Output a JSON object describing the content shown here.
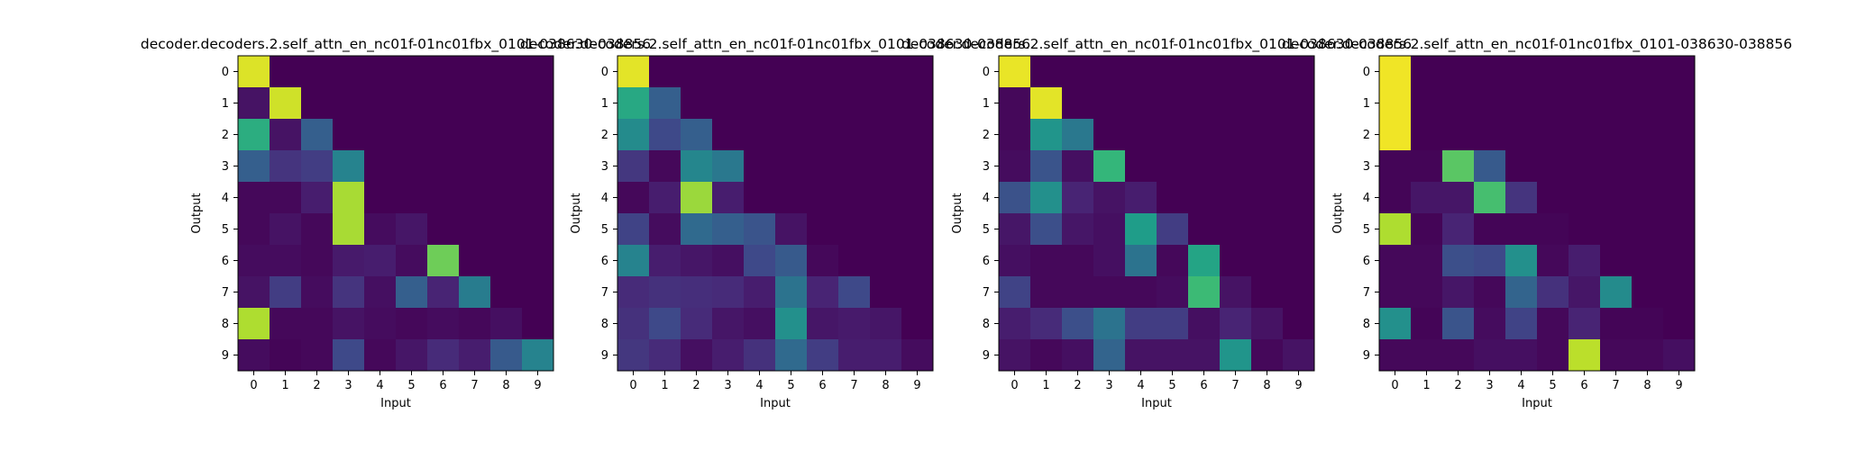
{
  "chart_data": [
    {
      "type": "heatmap",
      "title": "decoder.decoders.2.self_attn_en_nc01f-01nc01fbx_0101-038630-038856",
      "xlabel": "Input",
      "ylabel": "Output",
      "x_ticks": [
        "0",
        "1",
        "2",
        "3",
        "4",
        "5",
        "6",
        "7",
        "8",
        "9"
      ],
      "y_ticks": [
        "0",
        "1",
        "2",
        "3",
        "4",
        "5",
        "6",
        "7",
        "8",
        "9"
      ],
      "colormap": "viridis",
      "value_range": [
        0,
        1
      ],
      "values": [
        [
          0.95,
          0,
          0,
          0,
          0,
          0,
          0,
          0,
          0,
          0
        ],
        [
          0.05,
          0.93,
          0,
          0,
          0,
          0,
          0,
          0,
          0,
          0
        ],
        [
          0.62,
          0.05,
          0.3,
          0,
          0,
          0,
          0,
          0,
          0,
          0
        ],
        [
          0.3,
          0.15,
          0.18,
          0.45,
          0,
          0,
          0,
          0,
          0,
          0
        ],
        [
          0.02,
          0.02,
          0.08,
          0.87,
          0,
          0,
          0,
          0,
          0,
          0
        ],
        [
          0.02,
          0.05,
          0.02,
          0.87,
          0.03,
          0.06,
          0,
          0,
          0,
          0
        ],
        [
          0.03,
          0.03,
          0.02,
          0.07,
          0.08,
          0.03,
          0.78,
          0,
          0,
          0
        ],
        [
          0.05,
          0.18,
          0.03,
          0.15,
          0.04,
          0.3,
          0.1,
          0.42,
          0,
          0
        ],
        [
          0.88,
          0.02,
          0.02,
          0.05,
          0.03,
          0.02,
          0.03,
          0.02,
          0.04,
          0
        ],
        [
          0.03,
          0.01,
          0.02,
          0.22,
          0.02,
          0.06,
          0.12,
          0.08,
          0.28,
          0.45
        ]
      ]
    },
    {
      "type": "heatmap",
      "title": "decoder.decoders.2.self_attn_en_nc01f-01nc01fbx_0101-038630-038856",
      "xlabel": "Input",
      "ylabel": "Output",
      "x_ticks": [
        "0",
        "1",
        "2",
        "3",
        "4",
        "5",
        "6",
        "7",
        "8",
        "9"
      ],
      "y_ticks": [
        "0",
        "1",
        "2",
        "3",
        "4",
        "5",
        "6",
        "7",
        "8",
        "9"
      ],
      "colormap": "viridis",
      "value_range": [
        0,
        1
      ],
      "values": [
        [
          0.96,
          0,
          0,
          0,
          0,
          0,
          0,
          0,
          0,
          0
        ],
        [
          0.6,
          0.3,
          0,
          0,
          0,
          0,
          0,
          0,
          0,
          0
        ],
        [
          0.48,
          0.22,
          0.3,
          0,
          0,
          0,
          0,
          0,
          0,
          0
        ],
        [
          0.16,
          0.02,
          0.46,
          0.4,
          0,
          0,
          0,
          0,
          0,
          0
        ],
        [
          0.02,
          0.08,
          0.85,
          0.08,
          0,
          0,
          0,
          0,
          0,
          0
        ],
        [
          0.2,
          0.03,
          0.34,
          0.3,
          0.26,
          0.05,
          0,
          0,
          0,
          0
        ],
        [
          0.45,
          0.08,
          0.06,
          0.04,
          0.22,
          0.28,
          0.02,
          0,
          0,
          0
        ],
        [
          0.12,
          0.14,
          0.13,
          0.12,
          0.08,
          0.38,
          0.1,
          0.22,
          0,
          0
        ],
        [
          0.14,
          0.22,
          0.12,
          0.06,
          0.04,
          0.5,
          0.06,
          0.07,
          0.06,
          0
        ],
        [
          0.16,
          0.12,
          0.04,
          0.08,
          0.14,
          0.34,
          0.18,
          0.08,
          0.08,
          0.03
        ]
      ]
    },
    {
      "type": "heatmap",
      "title": "decoder.decoders.2.self_attn_en_nc01f-01nc01fbx_0101-038630-038856",
      "xlabel": "Input",
      "ylabel": "Output",
      "x_ticks": [
        "0",
        "1",
        "2",
        "3",
        "4",
        "5",
        "6",
        "7",
        "8",
        "9"
      ],
      "y_ticks": [
        "0",
        "1",
        "2",
        "3",
        "4",
        "5",
        "6",
        "7",
        "8",
        "9"
      ],
      "colormap": "viridis",
      "value_range": [
        0,
        1
      ],
      "values": [
        [
          0.97,
          0,
          0,
          0,
          0,
          0,
          0,
          0,
          0,
          0
        ],
        [
          0.02,
          0.96,
          0,
          0,
          0,
          0,
          0,
          0,
          0,
          0
        ],
        [
          0.02,
          0.52,
          0.4,
          0,
          0,
          0,
          0,
          0,
          0,
          0
        ],
        [
          0.03,
          0.26,
          0.04,
          0.66,
          0,
          0,
          0,
          0,
          0,
          0
        ],
        [
          0.25,
          0.5,
          0.1,
          0.05,
          0.08,
          0,
          0,
          0,
          0,
          0
        ],
        [
          0.06,
          0.24,
          0.06,
          0.04,
          0.55,
          0.18,
          0,
          0,
          0,
          0
        ],
        [
          0.04,
          0.02,
          0.02,
          0.04,
          0.38,
          0.02,
          0.58,
          0,
          0,
          0
        ],
        [
          0.2,
          0.02,
          0.02,
          0.02,
          0.02,
          0.03,
          0.68,
          0.05,
          0,
          0
        ],
        [
          0.08,
          0.12,
          0.24,
          0.38,
          0.18,
          0.18,
          0.04,
          0.1,
          0.05,
          0
        ],
        [
          0.05,
          0.02,
          0.04,
          0.32,
          0.05,
          0.05,
          0.05,
          0.52,
          0.02,
          0.05
        ]
      ]
    },
    {
      "type": "heatmap",
      "title": "decoder.decoders.2.self_attn_en_nc01f-01nc01fbx_0101-038630-038856",
      "xlabel": "Input",
      "ylabel": "Output",
      "x_ticks": [
        "0",
        "1",
        "2",
        "3",
        "4",
        "5",
        "6",
        "7",
        "8",
        "9"
      ],
      "y_ticks": [
        "0",
        "1",
        "2",
        "3",
        "4",
        "5",
        "6",
        "7",
        "8",
        "9"
      ],
      "colormap": "viridis",
      "value_range": [
        0,
        1
      ],
      "values": [
        [
          0.98,
          0,
          0,
          0,
          0,
          0,
          0,
          0,
          0,
          0
        ],
        [
          0.98,
          0,
          0,
          0,
          0,
          0,
          0,
          0,
          0,
          0
        ],
        [
          0.98,
          0,
          0,
          0,
          0,
          0,
          0,
          0,
          0,
          0
        ],
        [
          0.01,
          0.01,
          0.74,
          0.28,
          0,
          0,
          0,
          0,
          0,
          0
        ],
        [
          0.01,
          0.06,
          0.06,
          0.7,
          0.15,
          0,
          0,
          0,
          0,
          0
        ],
        [
          0.88,
          0.01,
          0.1,
          0.01,
          0.01,
          0.01,
          0,
          0,
          0,
          0
        ],
        [
          0.02,
          0.02,
          0.24,
          0.22,
          0.5,
          0.02,
          0.08,
          0,
          0,
          0
        ],
        [
          0.02,
          0.02,
          0.06,
          0.02,
          0.32,
          0.14,
          0.06,
          0.48,
          0,
          0
        ],
        [
          0.5,
          0.01,
          0.26,
          0.03,
          0.2,
          0.02,
          0.1,
          0.01,
          0.01,
          0
        ],
        [
          0.02,
          0.02,
          0.02,
          0.04,
          0.04,
          0.02,
          0.9,
          0.02,
          0.02,
          0.04
        ]
      ]
    }
  ]
}
